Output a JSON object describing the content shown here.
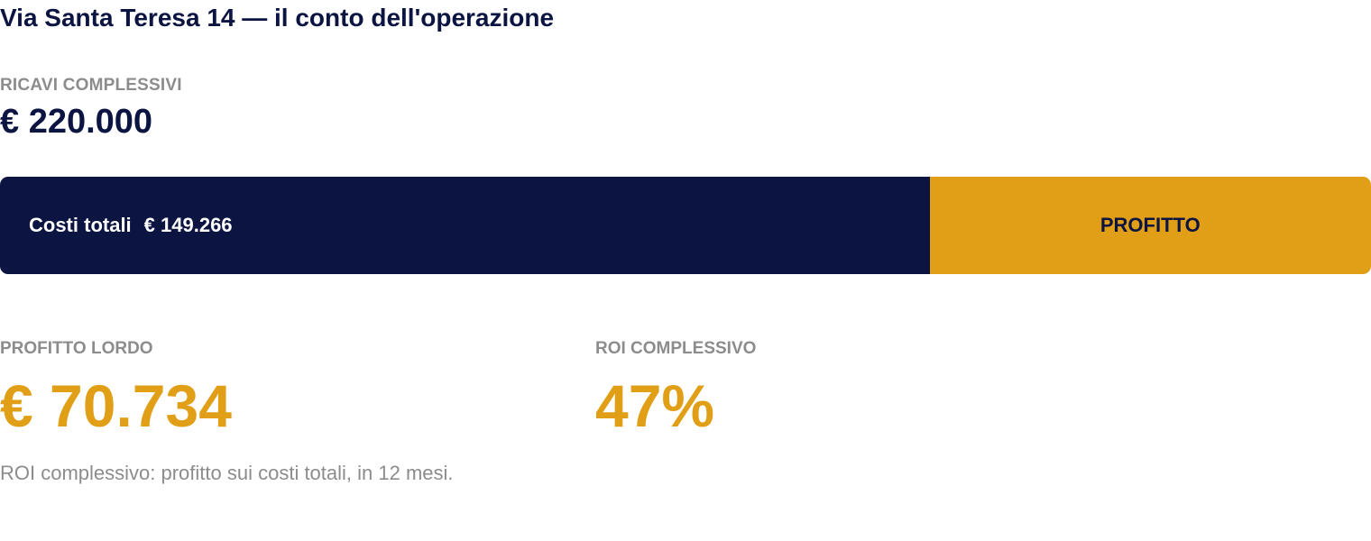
{
  "title": "Via Santa Teresa 14 — il conto dell'operazione",
  "revenue": {
    "label": "RICAVI COMPLESSIVI",
    "value": "€ 220.000"
  },
  "bar": {
    "costs_label": "Costi totali",
    "costs_value": "€ 149.266",
    "costs_share": 0.678,
    "profit_label": "PROFITTO",
    "costs_color": "#0c1442",
    "profit_color": "#e09f16"
  },
  "profit": {
    "label": "PROFITTO LORDO",
    "value": "€ 70.734"
  },
  "roi": {
    "label": "ROI COMPLESSIVO",
    "value": "47%"
  },
  "footnote": "ROI complessivo: profitto sui costi totali, in 12 mesi."
}
